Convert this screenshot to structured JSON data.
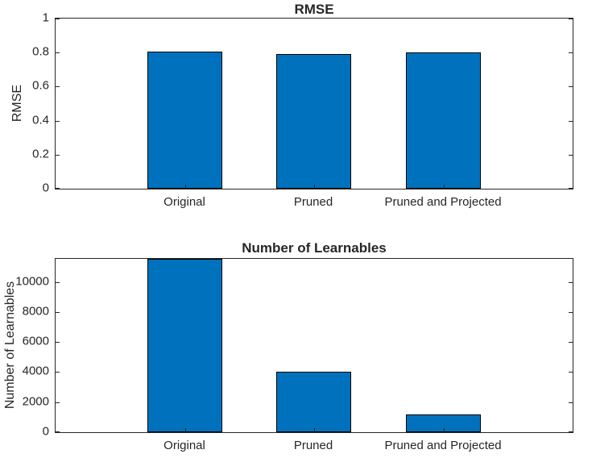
{
  "chart_data": [
    {
      "type": "bar",
      "title": "RMSE",
      "xlabel": "",
      "ylabel": "RMSE",
      "categories": [
        "Original",
        "Pruned",
        "Pruned and Projected"
      ],
      "values": [
        0.805,
        0.79,
        0.8
      ],
      "ylim": [
        0,
        1
      ],
      "yticks": [
        0,
        0.2,
        0.4,
        0.6,
        0.8,
        1
      ],
      "ytick_labels": [
        "0",
        "0.2",
        "0.4",
        "0.6",
        "0.8",
        "1"
      ],
      "bar_color": "#0072BD",
      "bar_edge_color": "#000000",
      "axis_color": "#262626",
      "grid": false,
      "legend": "none",
      "box": true
    },
    {
      "type": "bar",
      "title": "Number of Learnables",
      "xlabel": "",
      "ylabel": "Number of Learnables",
      "categories": [
        "Original",
        "Pruned",
        "Pruned and Projected"
      ],
      "values": [
        11540,
        4000,
        1160
      ],
      "ylim": [
        0,
        11540
      ],
      "yticks": [
        0,
        2000,
        4000,
        6000,
        8000,
        10000
      ],
      "ytick_labels": [
        "0",
        "2000",
        "4000",
        "6000",
        "8000",
        "10000"
      ],
      "bar_color": "#0072BD",
      "bar_edge_color": "#000000",
      "axis_color": "#262626",
      "grid": false,
      "legend": "none",
      "box": true
    }
  ]
}
